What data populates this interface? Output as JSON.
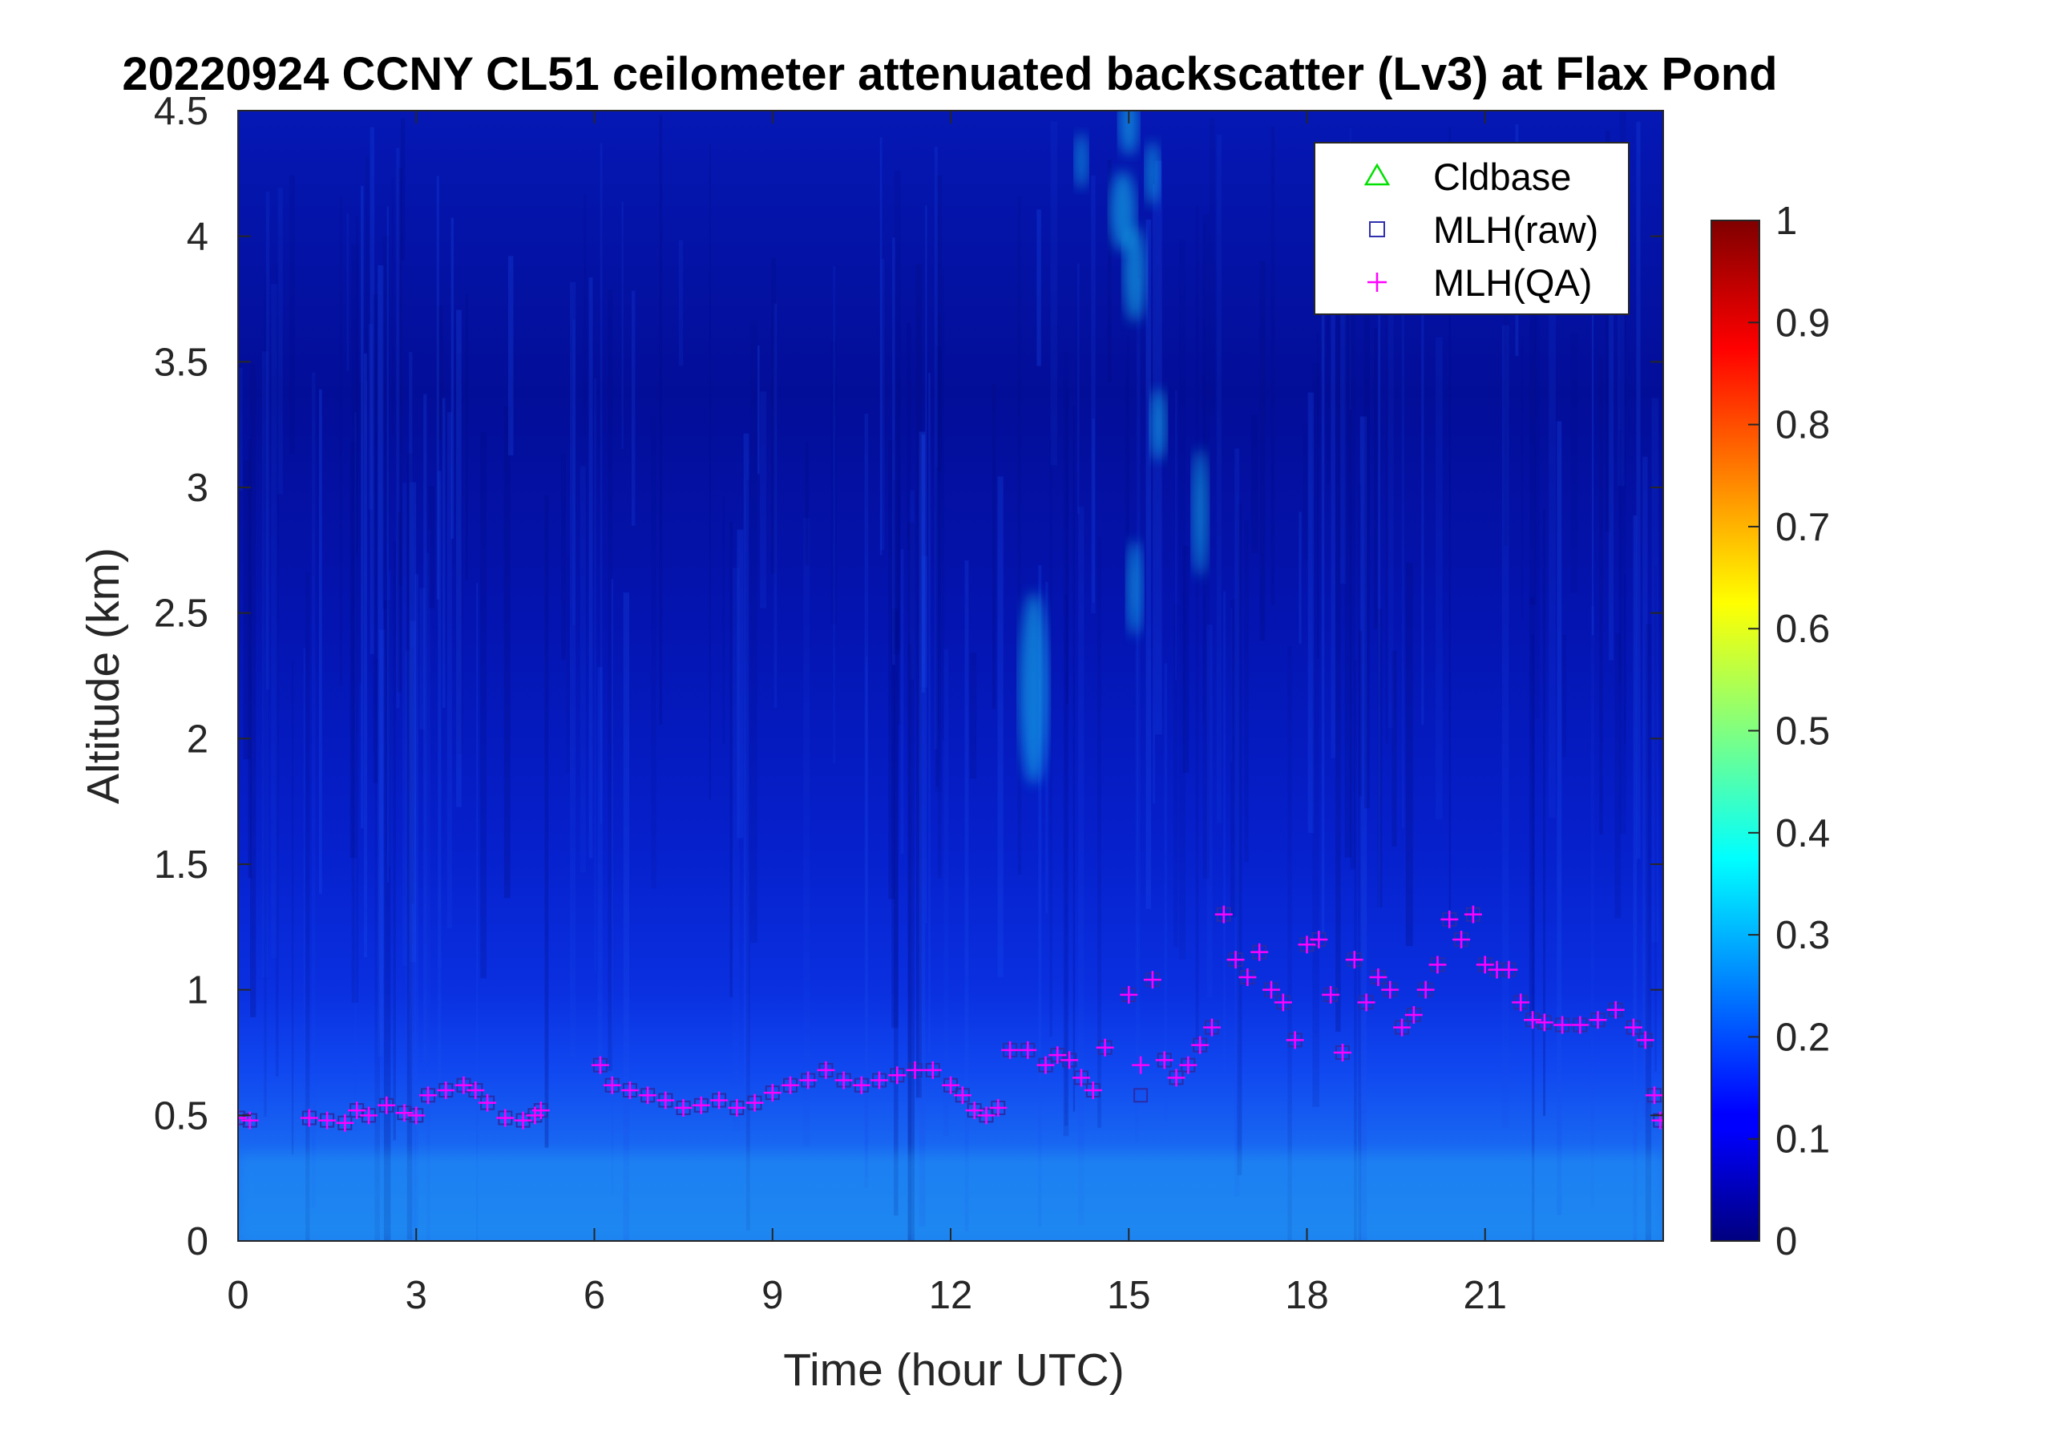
{
  "chart_data": {
    "type": "heatmap",
    "title": "20220924 CCNY CL51 ceilometer attenuated backscatter (Lv3) at Flax Pond",
    "xlabel": "Time (hour UTC)",
    "ylabel": "Altitude (km)",
    "xlim": [
      0,
      24
    ],
    "ylim": [
      0,
      4.5
    ],
    "x_ticks": [
      0,
      3,
      6,
      9,
      12,
      15,
      18,
      21
    ],
    "x_tick_labels": [
      "0",
      "3",
      "6",
      "9",
      "12",
      "15",
      "18",
      "21"
    ],
    "y_ticks": [
      0,
      0.5,
      1,
      1.5,
      2,
      2.5,
      3,
      3.5,
      4,
      4.5
    ],
    "y_tick_labels": [
      "0",
      "0.5",
      "1",
      "1.5",
      "2",
      "2.5",
      "3",
      "3.5",
      "4",
      "4.5"
    ],
    "colormap": "jet",
    "color_range": [
      0,
      1
    ],
    "colorbar_ticks": [
      0,
      0.1,
      0.2,
      0.3,
      0.4,
      0.5,
      0.6,
      0.7,
      0.8,
      0.9,
      1
    ],
    "colorbar_tick_labels": [
      "0",
      "0.1",
      "0.2",
      "0.3",
      "0.4",
      "0.5",
      "0.6",
      "0.7",
      "0.8",
      "0.9",
      "1"
    ],
    "legend_position": "top-right",
    "legend": [
      {
        "label": "Cldbase",
        "marker": "triangle",
        "color": "#00e000"
      },
      {
        "label": "MLH(raw)",
        "marker": "square",
        "color": "#3030b0"
      },
      {
        "label": "MLH(QA)",
        "marker": "plus",
        "color": "#ff00ff"
      }
    ],
    "series": [
      {
        "name": "MLH(QA)",
        "x": [
          0.0,
          0.2,
          1.2,
          1.5,
          1.8,
          2.0,
          2.2,
          2.5,
          2.8,
          3.0,
          3.2,
          3.5,
          3.8,
          4.0,
          4.2,
          4.5,
          4.8,
          5.0,
          5.1,
          6.1,
          6.3,
          6.6,
          6.9,
          7.2,
          7.5,
          7.8,
          8.1,
          8.4,
          8.7,
          9.0,
          9.3,
          9.6,
          9.9,
          10.2,
          10.5,
          10.8,
          11.1,
          11.4,
          11.7,
          12.0,
          12.2,
          12.4,
          12.6,
          12.8,
          13.0,
          13.3,
          13.6,
          13.8,
          14.0,
          14.2,
          14.4,
          14.6,
          15.0,
          15.2,
          15.4,
          15.6,
          15.8,
          16.0,
          16.2,
          16.4,
          16.6,
          16.8,
          17.0,
          17.2,
          17.4,
          17.6,
          17.8,
          18.0,
          18.2,
          18.4,
          18.6,
          18.8,
          19.0,
          19.2,
          19.4,
          19.6,
          19.8,
          20.0,
          20.2,
          20.4,
          20.6,
          20.8,
          21.0,
          21.2,
          21.4,
          21.6,
          21.8,
          22.0,
          22.3,
          22.6,
          22.9,
          23.2,
          23.5,
          23.7,
          23.85,
          23.95
        ],
        "y": [
          0.49,
          0.48,
          0.49,
          0.48,
          0.47,
          0.52,
          0.5,
          0.54,
          0.51,
          0.5,
          0.58,
          0.6,
          0.62,
          0.6,
          0.55,
          0.49,
          0.48,
          0.5,
          0.52,
          0.7,
          0.62,
          0.6,
          0.58,
          0.56,
          0.53,
          0.54,
          0.56,
          0.53,
          0.55,
          0.59,
          0.62,
          0.64,
          0.68,
          0.64,
          0.62,
          0.64,
          0.66,
          0.68,
          0.68,
          0.62,
          0.58,
          0.52,
          0.5,
          0.53,
          0.76,
          0.76,
          0.7,
          0.74,
          0.72,
          0.65,
          0.6,
          0.77,
          0.98,
          0.7,
          1.04,
          0.72,
          0.65,
          0.7,
          0.78,
          0.85,
          1.3,
          1.12,
          1.05,
          1.15,
          1.0,
          0.95,
          0.8,
          1.18,
          1.2,
          0.98,
          0.75,
          1.12,
          0.95,
          1.05,
          1.0,
          0.85,
          0.9,
          1.0,
          1.1,
          1.28,
          1.2,
          1.3,
          1.1,
          1.08,
          1.08,
          0.95,
          0.88,
          0.87,
          0.86,
          0.86,
          0.88,
          0.92,
          0.85,
          0.8,
          0.58,
          0.48
        ]
      },
      {
        "name": "MLH(raw)",
        "x": [
          0.0,
          0.2,
          1.2,
          1.5,
          1.8,
          2.0,
          2.2,
          2.5,
          2.8,
          3.0,
          3.2,
          3.5,
          3.8,
          4.0,
          4.2,
          4.5,
          4.8,
          5.0,
          5.1,
          6.1,
          6.3,
          6.6,
          6.9,
          7.2,
          7.5,
          7.8,
          8.1,
          8.4,
          8.7,
          9.0,
          9.3,
          9.6,
          9.9,
          10.2,
          10.5,
          10.8,
          11.1,
          11.4,
          11.7,
          12.0,
          12.2,
          12.4,
          12.6,
          12.8,
          13.0,
          13.3,
          13.6,
          13.8,
          14.0,
          14.2,
          14.4,
          14.6,
          15.0,
          15.2,
          15.4,
          15.6,
          15.8,
          16.0,
          16.2,
          16.4,
          16.6,
          16.8,
          17.0,
          17.2,
          17.4,
          17.6,
          17.8,
          18.0,
          18.2,
          18.4,
          18.6,
          18.8,
          19.0,
          19.2,
          19.4,
          19.6,
          19.8,
          20.0,
          20.2,
          20.4,
          20.6,
          20.8,
          21.0,
          21.2,
          21.4,
          21.6,
          21.8,
          22.0,
          22.3,
          22.6,
          22.9,
          23.2,
          23.5,
          23.7,
          23.85,
          23.95
        ],
        "y": [
          0.49,
          0.48,
          0.49,
          0.48,
          0.47,
          0.52,
          0.5,
          0.54,
          0.51,
          0.5,
          0.58,
          0.6,
          0.62,
          0.6,
          0.55,
          0.49,
          0.48,
          0.5,
          0.52,
          0.7,
          0.62,
          0.6,
          0.58,
          0.56,
          0.53,
          0.54,
          0.56,
          0.53,
          0.55,
          0.59,
          0.62,
          0.64,
          0.68,
          0.64,
          0.62,
          0.64,
          0.66,
          0.68,
          0.68,
          0.62,
          0.58,
          0.52,
          0.5,
          0.53,
          0.76,
          0.76,
          0.7,
          0.74,
          0.72,
          0.65,
          0.6,
          0.77,
          0.98,
          0.58,
          1.04,
          0.72,
          0.65,
          0.7,
          0.78,
          0.85,
          1.3,
          1.12,
          1.05,
          1.15,
          1.0,
          0.95,
          0.8,
          1.18,
          1.2,
          0.98,
          0.75,
          1.12,
          0.95,
          1.05,
          1.0,
          0.85,
          0.9,
          1.0,
          1.1,
          1.28,
          1.2,
          1.3,
          1.1,
          1.08,
          1.08,
          0.95,
          0.88,
          0.87,
          0.86,
          0.86,
          0.88,
          0.92,
          0.85,
          0.8,
          0.58,
          0.48
        ]
      },
      {
        "name": "Cldbase",
        "x": [],
        "y": []
      }
    ]
  }
}
